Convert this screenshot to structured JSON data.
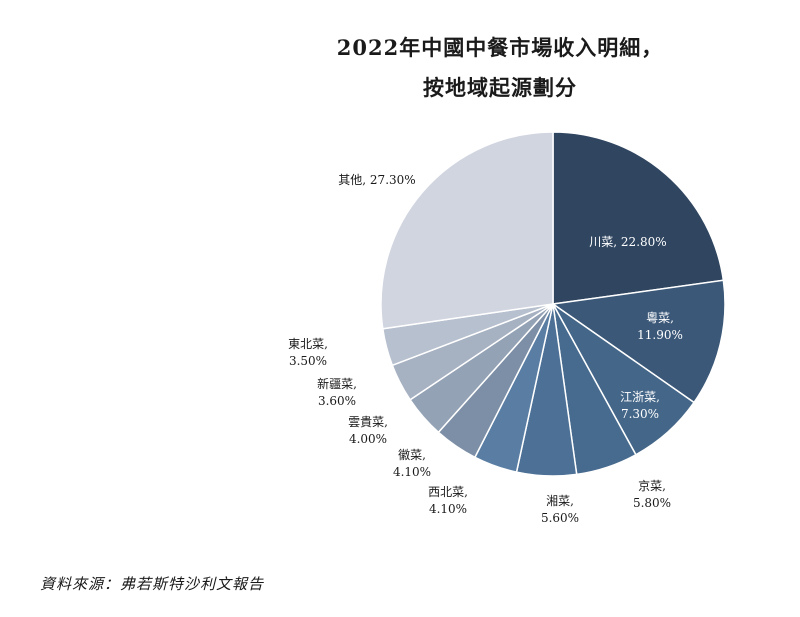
{
  "chart_data": {
    "type": "pie",
    "title": "2022年中國中餐市場收入明細，",
    "subtitle": "按地域起源劃分",
    "slices": [
      {
        "name": "川菜",
        "value": 22.8,
        "label": "22.80%",
        "color": "#2f4560",
        "text_color": "#ffffff"
      },
      {
        "name": "粵菜",
        "value": 11.9,
        "label": "11.90%",
        "color": "#3b5878",
        "text_color": "#ffffff"
      },
      {
        "name": "江浙菜",
        "value": 7.3,
        "label": "7.30%",
        "color": "#446688",
        "text_color": "#ffffff"
      },
      {
        "name": "京菜",
        "value": 5.8,
        "label": "5.80%",
        "color": "#476b8f",
        "text_color": "#1a1a1a"
      },
      {
        "name": "湘菜",
        "value": 5.6,
        "label": "5.60%",
        "color": "#4c7096",
        "text_color": "#1a1a1a"
      },
      {
        "name": "西北菜",
        "value": 4.1,
        "label": "4.10%",
        "color": "#5a7ea3",
        "text_color": "#1a1a1a"
      },
      {
        "name": "徽菜",
        "value": 4.1,
        "label": "4.10%",
        "color": "#7d8fa6",
        "text_color": "#1a1a1a"
      },
      {
        "name": "雲貴菜",
        "value": 4.0,
        "label": "4.00%",
        "color": "#94a2b5",
        "text_color": "#1a1a1a"
      },
      {
        "name": "新疆菜",
        "value": 3.6,
        "label": "3.60%",
        "color": "#a6b1c2",
        "text_color": "#1a1a1a"
      },
      {
        "name": "東北菜",
        "value": 3.5,
        "label": "3.50%",
        "color": "#b7c0ce",
        "text_color": "#1a1a1a"
      },
      {
        "name": "其他",
        "value": 27.3,
        "label": "27.30%",
        "color": "#d1d5e0",
        "text_color": "#1a1a1a"
      }
    ]
  },
  "source": "資料來源：弗若斯特沙利文報告"
}
